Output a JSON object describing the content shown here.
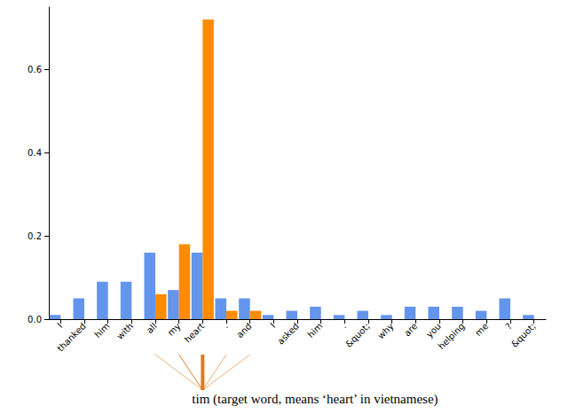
{
  "chart_data": {
    "type": "bar",
    "categories": [
      "I",
      "thanked",
      "him",
      "with",
      "all",
      "my",
      "heart",
      ".",
      "and",
      "I",
      "asked",
      "him",
      ".",
      "&quot;",
      "why",
      "are",
      "you",
      "helping",
      "me",
      "?",
      "&quot;"
    ],
    "series": [
      {
        "color": "#6495ed",
        "values": [
          0.01,
          0.05,
          0.09,
          0.09,
          0.16,
          0.07,
          0.16,
          0.05,
          0.05,
          0.01,
          0.02,
          0.03,
          0.01,
          0.02,
          0.01,
          0.03,
          0.03,
          0.03,
          0.02,
          0.05,
          0.01
        ]
      },
      {
        "color": "#ff8c00",
        "values": [
          0,
          0,
          0,
          0,
          0.06,
          0.18,
          0.72,
          0.02,
          0.02,
          0,
          0,
          0,
          0,
          0,
          0,
          0,
          0,
          0,
          0,
          0,
          0
        ]
      }
    ],
    "ylim": [
      0,
      0.75
    ],
    "yticks": [
      {
        "value": 0,
        "label": "0.0"
      },
      0.2,
      0.4,
      0.6
    ],
    "grid": false,
    "annotation": "tim (target word, means ‘heart’ in vietnamese)"
  }
}
